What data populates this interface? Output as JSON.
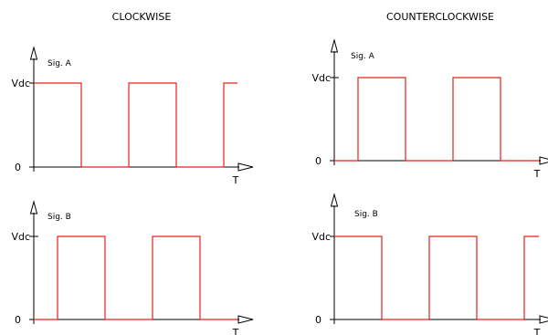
{
  "panels": [
    {
      "id": "cw",
      "title": "CLOCKWISE",
      "signals": [
        {
          "name": "Sig. A",
          "high_label": "Vdc",
          "zero_label": "0",
          "time_label": "T",
          "levels": [
            1,
            1,
            0,
            0,
            1,
            1,
            0,
            0,
            1,
            1
          ]
        },
        {
          "name": "Sig. B",
          "high_label": "Vdc",
          "zero_label": "0",
          "time_label": "T",
          "levels": [
            0,
            1,
            1,
            0,
            0,
            1,
            1,
            0,
            0,
            0
          ]
        }
      ]
    },
    {
      "id": "ccw",
      "title": "COUNTERCLOCKWISE",
      "signals": [
        {
          "name": "Sig. A",
          "high_label": "Vdc",
          "zero_label": "0",
          "time_label": "T",
          "levels": [
            0,
            1,
            1,
            0,
            0,
            1,
            1,
            0,
            0,
            0
          ]
        },
        {
          "name": "Sig. B",
          "high_label": "Vdc",
          "zero_label": "0",
          "time_label": "T",
          "levels": [
            1,
            1,
            0,
            0,
            1,
            1,
            0,
            0,
            1,
            1
          ]
        }
      ]
    }
  ],
  "colors": {
    "signal": "#e8201a",
    "axis": "#000000"
  }
}
